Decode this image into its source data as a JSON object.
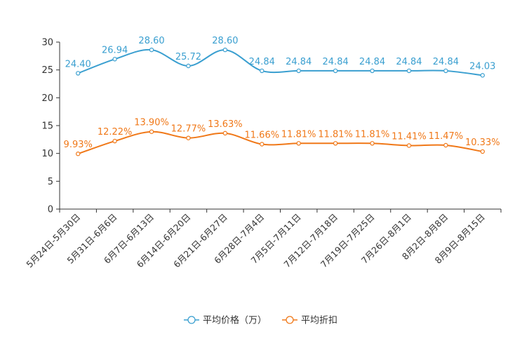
{
  "chart_data": {
    "type": "line",
    "categories": [
      "5月24日-5月30日",
      "5月31日-6月6日",
      "6月7日-6月13日",
      "6月14日-6月20日",
      "6月21日-6月27日",
      "6月28日-7月4日",
      "7月5日-7月11日",
      "7月12日-7月18日",
      "7月19日-7月25日",
      "7月26日-8月1日",
      "8月2日-8月8日",
      "8月9日-8月15日"
    ],
    "series": [
      {
        "name": "平均价格（万）",
        "color": "#3a9fd0",
        "values": [
          24.4,
          26.94,
          28.6,
          25.72,
          28.6,
          24.84,
          24.84,
          24.84,
          24.84,
          24.84,
          24.84,
          24.03
        ],
        "labels": [
          "24.40",
          "26.94",
          "28.60",
          "25.72",
          "28.60",
          "24.84",
          "24.84",
          "24.84",
          "24.84",
          "24.84",
          "24.84",
          "24.03"
        ]
      },
      {
        "name": "平均折扣",
        "color": "#f07818",
        "values": [
          9.93,
          12.22,
          13.9,
          12.77,
          13.63,
          11.66,
          11.81,
          11.81,
          11.81,
          11.41,
          11.47,
          10.33
        ],
        "labels": [
          "9.93%",
          "12.22%",
          "13.90%",
          "12.77%",
          "13.63%",
          "11.66%",
          "11.81%",
          "11.81%",
          "11.81%",
          "11.41%",
          "11.47%",
          "10.33%"
        ]
      }
    ],
    "ylim": [
      0,
      30
    ],
    "yticks": [
      0,
      5,
      10,
      15,
      20,
      25,
      30
    ],
    "title": "",
    "xlabel": "",
    "ylabel": "",
    "legend_position": "bottom-center",
    "grid": false
  }
}
